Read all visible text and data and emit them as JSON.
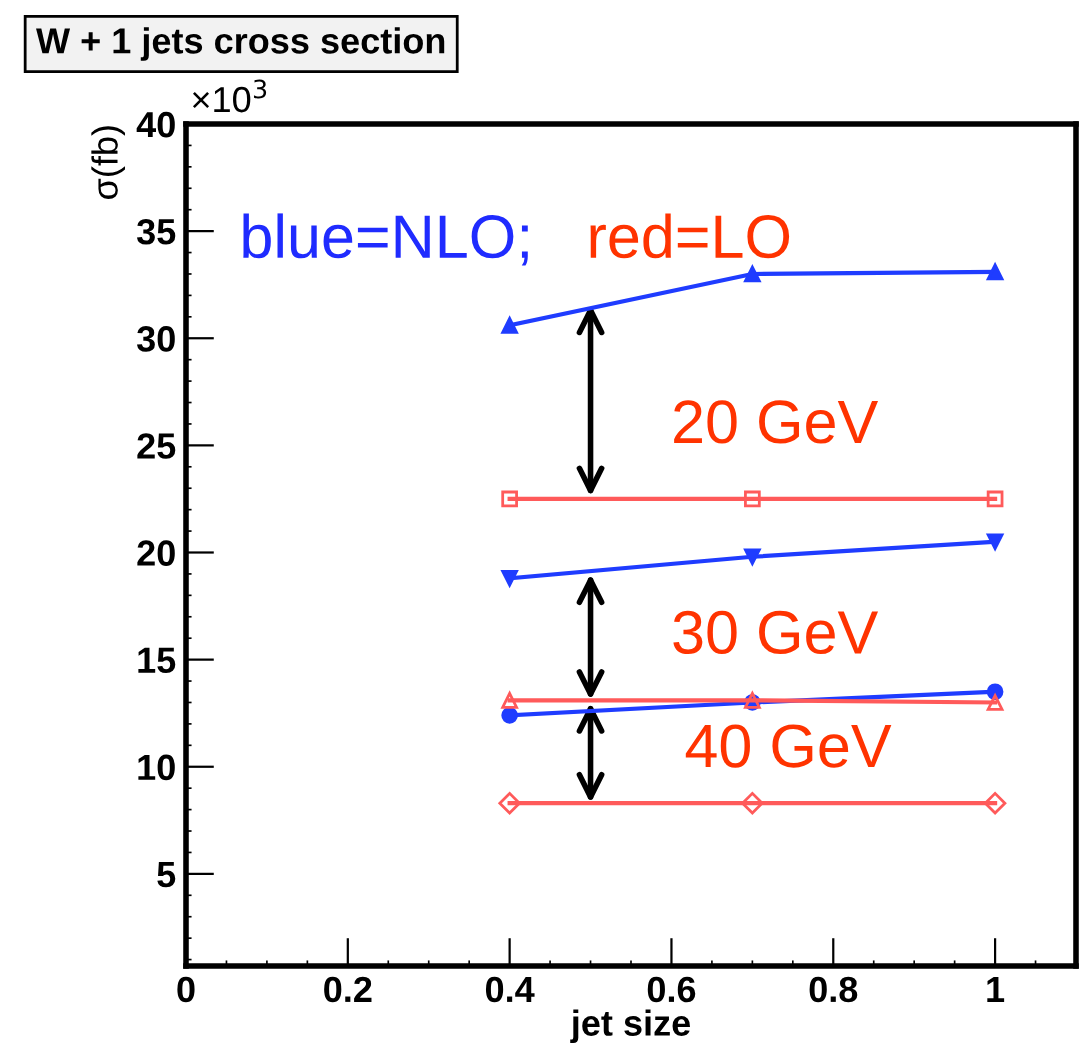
{
  "chart_data": {
    "type": "line",
    "title": "W + 1 jets cross section",
    "xlabel": "jet size",
    "ylabel": "σ(fb)",
    "x": [
      0.4,
      0.7,
      1.0
    ],
    "series": [
      {
        "color": "#1f3cff",
        "marker": "triangle",
        "values": [
          30.6,
          33.0,
          33.1
        ]
      },
      {
        "color": "#ff5a5a",
        "marker": "square",
        "values": [
          22.5,
          22.5,
          22.5
        ]
      },
      {
        "color": "#1f3cff",
        "marker": "triangle_down",
        "values": [
          18.8,
          19.8,
          20.5
        ]
      },
      {
        "color": "#ff5a5a",
        "marker": "triangle",
        "values": [
          13.1,
          13.1,
          13.0
        ]
      },
      {
        "color": "#1f3cff",
        "marker": "circle",
        "values": [
          12.4,
          13.0,
          13.5
        ]
      },
      {
        "color": "#ff5a5a",
        "marker": "diamond",
        "values": [
          8.3,
          8.3,
          8.3
        ]
      }
    ],
    "annotations": [
      "×10$^{3}$",
      "blue=NLO;",
      "red=LO",
      "20 GeV",
      "30 GeV",
      "40 GeV"
    ],
    "xlim": [
      0,
      1.1
    ],
    "xticks": [
      0,
      {
        "value": 0.2,
        "label": "0.2"
      },
      {
        "value": 0.4,
        "label": "0.4"
      },
      {
        "value": 0.6,
        "label": "0.6"
      },
      {
        "value": 0.8,
        "label": "0.8"
      },
      1
    ],
    "ylim": [
      0.7,
      40
    ],
    "yticks": [
      5,
      10,
      15,
      20,
      25,
      30,
      35,
      40
    ],
    "grid": false,
    "legend": false
  }
}
